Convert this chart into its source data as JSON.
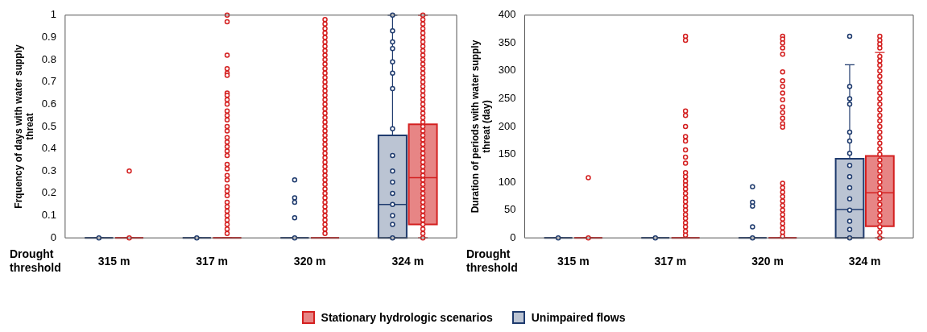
{
  "chart_data": [
    {
      "type": "box",
      "xlabel": "Drought threshold",
      "ylabel": "Frquency of days with water supply threat",
      "categories": [
        "315 m",
        "317 m",
        "320 m",
        "324 m"
      ],
      "ylim": [
        0,
        1
      ],
      "yticks": [
        0,
        0.1,
        0.2,
        0.3,
        0.4,
        0.5,
        0.6,
        0.7,
        0.8,
        0.9,
        1
      ],
      "grid": false,
      "legend": "bottom",
      "series": [
        {
          "name": "Unimpaired flows",
          "color": "#1f3b6e",
          "boxes": [
            {
              "low": 0,
              "q1": 0,
              "median": 0,
              "q3": 0,
              "high": 0,
              "outliers": [
                0
              ]
            },
            {
              "low": 0,
              "q1": 0,
              "median": 0,
              "q3": 0,
              "high": 0,
              "outliers": [
                0
              ]
            },
            {
              "low": 0,
              "q1": 0,
              "median": 0,
              "q3": 0,
              "high": 0,
              "outliers": [
                0.26,
                0.18,
                0.16,
                0.09,
                0
              ]
            },
            {
              "low": 0,
              "q1": 0,
              "median": 0.15,
              "q3": 0.46,
              "high": 1,
              "outliers": [
                1,
                0.93,
                0.88,
                0.85,
                0.79,
                0.74,
                0.67,
                0.49,
                0.37,
                0.3,
                0.25,
                0.2,
                0.15,
                0.1,
                0.06,
                0
              ]
            }
          ]
        },
        {
          "name": "Stationary hydrologic scenarios",
          "color": "#d42020",
          "boxes": [
            {
              "low": 0,
              "q1": 0,
              "median": 0,
              "q3": 0,
              "high": 0,
              "outliers": [
                0.3,
                0
              ]
            },
            {
              "low": 0,
              "q1": 0,
              "median": 0,
              "q3": 0,
              "high": 0,
              "outliers": [
                1,
                0.97,
                0.82,
                0.76,
                0.74,
                0.73,
                0.65,
                0.64,
                0.62,
                0.6,
                0.57,
                0.55,
                0.53,
                0.5,
                0.48,
                0.45,
                0.43,
                0.41,
                0.39,
                0.37,
                0.33,
                0.31,
                0.28,
                0.26,
                0.23,
                0.21,
                0.19,
                0.16,
                0.14,
                0.12,
                0.1,
                0.08,
                0.06,
                0.04,
                0.02
              ]
            },
            {
              "low": 0,
              "q1": 0,
              "median": 0,
              "q3": 0,
              "high": 0,
              "outliers": [
                0.98,
                0.96,
                0.94,
                0.92,
                0.9,
                0.88,
                0.86,
                0.84,
                0.82,
                0.8,
                0.78,
                0.76,
                0.74,
                0.72,
                0.7,
                0.68,
                0.66,
                0.64,
                0.62,
                0.6,
                0.58,
                0.56,
                0.54,
                0.52,
                0.5,
                0.48,
                0.46,
                0.44,
                0.42,
                0.4,
                0.38,
                0.36,
                0.34,
                0.32,
                0.3,
                0.28,
                0.26,
                0.24,
                0.22,
                0.2,
                0.18,
                0.16,
                0.14,
                0.12,
                0.1,
                0.08,
                0.06,
                0.04,
                0.02
              ]
            },
            {
              "low": 0,
              "q1": 0.06,
              "median": 0.27,
              "q3": 0.51,
              "high": 1,
              "outliers": [
                1,
                0.98,
                0.96,
                0.94,
                0.92,
                0.9,
                0.88,
                0.86,
                0.84,
                0.82,
                0.8,
                0.78,
                0.76,
                0.74,
                0.72,
                0.7,
                0.68,
                0.66,
                0.64,
                0.62,
                0.6,
                0.58,
                0.56,
                0.54,
                0.52,
                0.5,
                0.48,
                0.46,
                0.44,
                0.42,
                0.4,
                0.38,
                0.36,
                0.34,
                0.32,
                0.3,
                0.28,
                0.26,
                0.24,
                0.22,
                0.2,
                0.18,
                0.16,
                0.14,
                0.12,
                0.1,
                0.08,
                0.06,
                0.04,
                0.02,
                0
              ]
            }
          ]
        }
      ]
    },
    {
      "type": "box",
      "xlabel": "Drought threshold",
      "ylabel": "Duration of periods with water supply threat (day)",
      "categories": [
        "315 m",
        "317 m",
        "320 m",
        "324 m"
      ],
      "ylim": [
        0,
        400
      ],
      "yticks": [
        0,
        50,
        100,
        150,
        200,
        250,
        300,
        350,
        400
      ],
      "grid": false,
      "series": [
        {
          "color": "#1f3b6e",
          "boxes": [
            {
              "low": 0,
              "q1": 0,
              "median": 0,
              "q3": 0,
              "high": 0,
              "outliers": [
                0
              ]
            },
            {
              "low": 0,
              "q1": 0,
              "median": 0,
              "q3": 0,
              "high": 0,
              "outliers": [
                0
              ]
            },
            {
              "low": 0,
              "q1": 0,
              "median": 0,
              "q3": 0,
              "high": 0,
              "outliers": [
                92,
                64,
                57,
                20,
                0
              ]
            },
            {
              "low": 0,
              "q1": 0,
              "median": 51,
              "q3": 142,
              "high": 311,
              "outliers": [
                362,
                272,
                250,
                240,
                190,
                174,
                152,
                130,
                110,
                90,
                70,
                50,
                30,
                15,
                0
              ]
            }
          ]
        },
        {
          "color": "#d42020",
          "boxes": [
            {
              "low": 0,
              "q1": 0,
              "median": 0,
              "q3": 0,
              "high": 0,
              "outliers": [
                108,
                0
              ]
            },
            {
              "low": 0,
              "q1": 0,
              "median": 0,
              "q3": 0,
              "high": 0,
              "outliers": [
                362,
                355,
                228,
                220,
                200,
                182,
                174,
                158,
                145,
                134,
                117,
                110,
                102,
                95,
                88,
                80,
                72,
                65,
                57,
                50,
                42,
                35,
                27,
                20,
                12,
                5
              ]
            },
            {
              "low": 0,
              "q1": 0,
              "median": 0,
              "q3": 0,
              "high": 0,
              "outliers": [
                362,
                357,
                350,
                341,
                330,
                298,
                282,
                272,
                260,
                248,
                235,
                225,
                215,
                205,
                199,
                98,
                90,
                82,
                74,
                66,
                58,
                50,
                42,
                34,
                26,
                18,
                10,
                3
              ]
            },
            {
              "low": 0,
              "q1": 21,
              "median": 81,
              "q3": 147,
              "high": 333,
              "outliers": [
                362,
                355,
                348,
                341,
                326,
                318,
                310,
                300,
                290,
                280,
                270,
                260,
                250,
                240,
                230,
                220,
                210,
                200,
                190,
                180,
                170,
                160,
                150,
                140,
                130,
                120,
                110,
                100,
                90,
                80,
                70,
                60,
                50,
                40,
                30,
                20,
                10,
                0
              ]
            }
          ]
        }
      ]
    }
  ]
}
